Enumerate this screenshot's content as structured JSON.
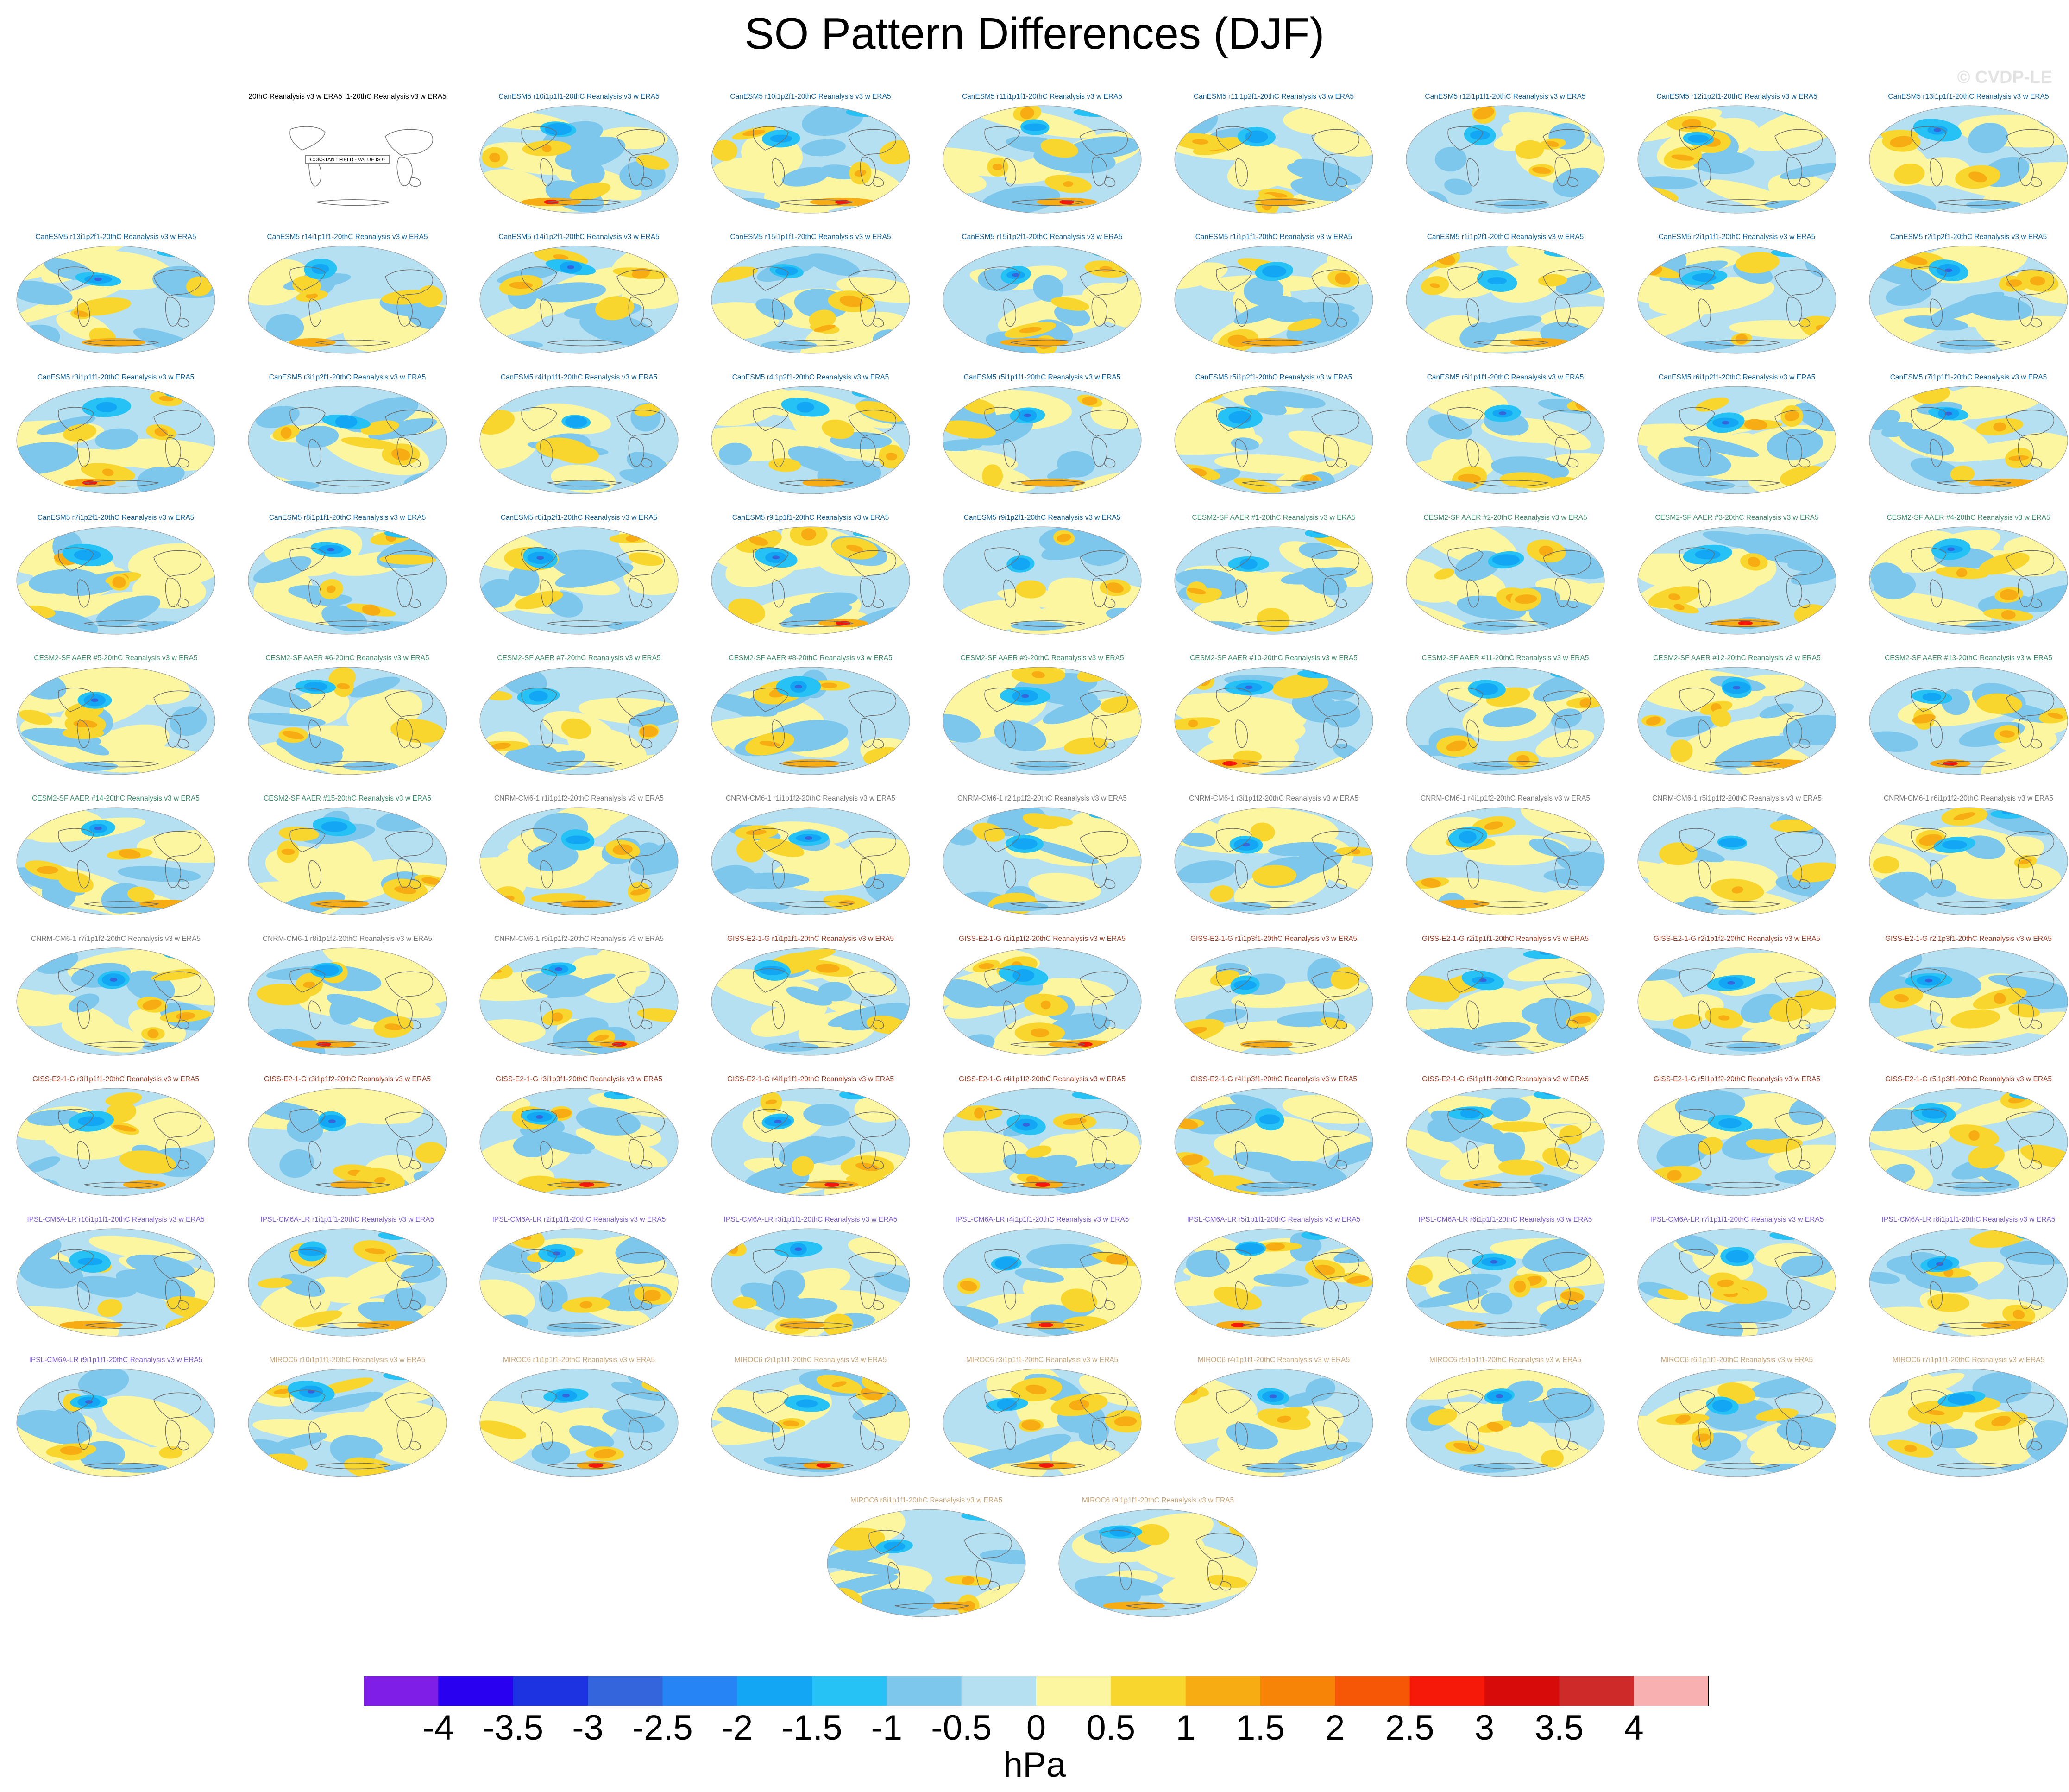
{
  "title": "SO Pattern Differences (DJF)",
  "watermark": "© CVDP-LE",
  "units": "hPa",
  "colorbar": {
    "labels": [
      "-4",
      "-3.5",
      "-3",
      "-2.5",
      "-2",
      "-1.5",
      "-1",
      "-0.5",
      "0",
      "0.5",
      "1",
      "1.5",
      "2",
      "2.5",
      "3",
      "3.5",
      "4"
    ],
    "colors": [
      "#7f1ee6",
      "#2a00f0",
      "#1d32e0",
      "#3465dc",
      "#2684f5",
      "#12a6f5",
      "#26c2f5",
      "#7ec7ec",
      "#b5e0f2",
      "#fdf6a1",
      "#f9d62e",
      "#f8ac13",
      "#f78407",
      "#f65706",
      "#f61809",
      "#d80b0b",
      "#cf2a2a",
      "#f9b0b0"
    ]
  },
  "groups": {
    "obs": "#000000",
    "canesm": "#0e5f9c",
    "cesm": "#3b8c6a",
    "cnrm": "#7a7a7a",
    "giss": "#9e3b22",
    "ipsl": "#7b5bd2",
    "miroc": "#c8a578"
  },
  "constant_field_text": "CONSTANT FIELD - VALUE IS 0",
  "panels": [
    {
      "label": "20thC Reanalysis v3 w ERA5_1-20thC Reanalysis v3 w ERA5",
      "group": "obs",
      "constant": true
    },
    {
      "label": "CanESM5 r10i1p1f1-20thC Reanalysis v3 w ERA5",
      "group": "canesm"
    },
    {
      "label": "CanESM5 r10i1p2f1-20thC Reanalysis v3 w ERA5",
      "group": "canesm"
    },
    {
      "label": "CanESM5 r11i1p1f1-20thC Reanalysis v3 w ERA5",
      "group": "canesm"
    },
    {
      "label": "CanESM5 r11i1p2f1-20thC Reanalysis v3 w ERA5",
      "group": "canesm"
    },
    {
      "label": "CanESM5 r12i1p1f1-20thC Reanalysis v3 w ERA5",
      "group": "canesm"
    },
    {
      "label": "CanESM5 r12i1p2f1-20thC Reanalysis v3 w ERA5",
      "group": "canesm"
    },
    {
      "label": "CanESM5 r13i1p1f1-20thC Reanalysis v3 w ERA5",
      "group": "canesm"
    },
    {
      "label": "CanESM5 r13i1p2f1-20thC Reanalysis v3 w ERA5",
      "group": "canesm"
    },
    {
      "label": "CanESM5 r14i1p1f1-20thC Reanalysis v3 w ERA5",
      "group": "canesm"
    },
    {
      "label": "CanESM5 r14i1p2f1-20thC Reanalysis v3 w ERA5",
      "group": "canesm"
    },
    {
      "label": "CanESM5 r15i1p1f1-20thC Reanalysis v3 w ERA5",
      "group": "canesm"
    },
    {
      "label": "CanESM5 r15i1p2f1-20thC Reanalysis v3 w ERA5",
      "group": "canesm"
    },
    {
      "label": "CanESM5 r1i1p1f1-20thC Reanalysis v3 w ERA5",
      "group": "canesm"
    },
    {
      "label": "CanESM5 r1i1p2f1-20thC Reanalysis v3 w ERA5",
      "group": "canesm"
    },
    {
      "label": "CanESM5 r2i1p1f1-20thC Reanalysis v3 w ERA5",
      "group": "canesm"
    },
    {
      "label": "CanESM5 r2i1p2f1-20thC Reanalysis v3 w ERA5",
      "group": "canesm"
    },
    {
      "label": "CanESM5 r3i1p1f1-20thC Reanalysis v3 w ERA5",
      "group": "canesm"
    },
    {
      "label": "CanESM5 r3i1p2f1-20thC Reanalysis v3 w ERA5",
      "group": "canesm"
    },
    {
      "label": "CanESM5 r4i1p1f1-20thC Reanalysis v3 w ERA5",
      "group": "canesm"
    },
    {
      "label": "CanESM5 r4i1p2f1-20thC Reanalysis v3 w ERA5",
      "group": "canesm"
    },
    {
      "label": "CanESM5 r5i1p1f1-20thC Reanalysis v3 w ERA5",
      "group": "canesm"
    },
    {
      "label": "CanESM5 r5i1p2f1-20thC Reanalysis v3 w ERA5",
      "group": "canesm"
    },
    {
      "label": "CanESM5 r6i1p1f1-20thC Reanalysis v3 w ERA5",
      "group": "canesm"
    },
    {
      "label": "CanESM5 r6i1p2f1-20thC Reanalysis v3 w ERA5",
      "group": "canesm"
    },
    {
      "label": "CanESM5 r7i1p1f1-20thC Reanalysis v3 w ERA5",
      "group": "canesm"
    },
    {
      "label": "CanESM5 r7i1p2f1-20thC Reanalysis v3 w ERA5",
      "group": "canesm"
    },
    {
      "label": "CanESM5 r8i1p1f1-20thC Reanalysis v3 w ERA5",
      "group": "canesm"
    },
    {
      "label": "CanESM5 r8i1p2f1-20thC Reanalysis v3 w ERA5",
      "group": "canesm"
    },
    {
      "label": "CanESM5 r9i1p1f1-20thC Reanalysis v3 w ERA5",
      "group": "canesm"
    },
    {
      "label": "CanESM5 r9i1p2f1-20thC Reanalysis v3 w ERA5",
      "group": "canesm"
    },
    {
      "label": "CESM2-SF AAER #1-20thC Reanalysis v3 w ERA5",
      "group": "cesm"
    },
    {
      "label": "CESM2-SF AAER #2-20thC Reanalysis v3 w ERA5",
      "group": "cesm"
    },
    {
      "label": "CESM2-SF AAER #3-20thC Reanalysis v3 w ERA5",
      "group": "cesm"
    },
    {
      "label": "CESM2-SF AAER #4-20thC Reanalysis v3 w ERA5",
      "group": "cesm"
    },
    {
      "label": "CESM2-SF AAER #5-20thC Reanalysis v3 w ERA5",
      "group": "cesm"
    },
    {
      "label": "CESM2-SF AAER #6-20thC Reanalysis v3 w ERA5",
      "group": "cesm"
    },
    {
      "label": "CESM2-SF AAER #7-20thC Reanalysis v3 w ERA5",
      "group": "cesm"
    },
    {
      "label": "CESM2-SF AAER #8-20thC Reanalysis v3 w ERA5",
      "group": "cesm"
    },
    {
      "label": "CESM2-SF AAER #9-20thC Reanalysis v3 w ERA5",
      "group": "cesm"
    },
    {
      "label": "CESM2-SF AAER #10-20thC Reanalysis v3 w ERA5",
      "group": "cesm"
    },
    {
      "label": "CESM2-SF AAER #11-20thC Reanalysis v3 w ERA5",
      "group": "cesm"
    },
    {
      "label": "CESM2-SF AAER #12-20thC Reanalysis v3 w ERA5",
      "group": "cesm"
    },
    {
      "label": "CESM2-SF AAER #13-20thC Reanalysis v3 w ERA5",
      "group": "cesm"
    },
    {
      "label": "CESM2-SF AAER #14-20thC Reanalysis v3 w ERA5",
      "group": "cesm"
    },
    {
      "label": "CESM2-SF AAER #15-20thC Reanalysis v3 w ERA5",
      "group": "cesm"
    },
    {
      "label": "CNRM-CM6-1 r1i1p1f2-20thC Reanalysis v3 w ERA5",
      "group": "cnrm"
    },
    {
      "label": "CNRM-CM6-1 r1i1p1f2-20thC Reanalysis v3 w ERA5",
      "group": "cnrm"
    },
    {
      "label": "CNRM-CM6-1 r2i1p1f2-20thC Reanalysis v3 w ERA5",
      "group": "cnrm"
    },
    {
      "label": "CNRM-CM6-1 r3i1p1f2-20thC Reanalysis v3 w ERA5",
      "group": "cnrm"
    },
    {
      "label": "CNRM-CM6-1 r4i1p1f2-20thC Reanalysis v3 w ERA5",
      "group": "cnrm"
    },
    {
      "label": "CNRM-CM6-1 r5i1p1f2-20thC Reanalysis v3 w ERA5",
      "group": "cnrm"
    },
    {
      "label": "CNRM-CM6-1 r6i1p1f2-20thC Reanalysis v3 w ERA5",
      "group": "cnrm"
    },
    {
      "label": "CNRM-CM6-1 r7i1p1f2-20thC Reanalysis v3 w ERA5",
      "group": "cnrm"
    },
    {
      "label": "CNRM-CM6-1 r8i1p1f2-20thC Reanalysis v3 w ERA5",
      "group": "cnrm"
    },
    {
      "label": "CNRM-CM6-1 r9i1p1f2-20thC Reanalysis v3 w ERA5",
      "group": "cnrm"
    },
    {
      "label": "GISS-E2-1-G r1i1p1f1-20thC Reanalysis v3 w ERA5",
      "group": "giss"
    },
    {
      "label": "GISS-E2-1-G r1i1p1f2-20thC Reanalysis v3 w ERA5",
      "group": "giss"
    },
    {
      "label": "GISS-E2-1-G r1i1p3f1-20thC Reanalysis v3 w ERA5",
      "group": "giss"
    },
    {
      "label": "GISS-E2-1-G r2i1p1f1-20thC Reanalysis v3 w ERA5",
      "group": "giss"
    },
    {
      "label": "GISS-E2-1-G r2i1p1f2-20thC Reanalysis v3 w ERA5",
      "group": "giss"
    },
    {
      "label": "GISS-E2-1-G r2i1p3f1-20thC Reanalysis v3 w ERA5",
      "group": "giss"
    },
    {
      "label": "GISS-E2-1-G r3i1p1f1-20thC Reanalysis v3 w ERA5",
      "group": "giss"
    },
    {
      "label": "GISS-E2-1-G r3i1p1f2-20thC Reanalysis v3 w ERA5",
      "group": "giss"
    },
    {
      "label": "GISS-E2-1-G r3i1p3f1-20thC Reanalysis v3 w ERA5",
      "group": "giss"
    },
    {
      "label": "GISS-E2-1-G r4i1p1f1-20thC Reanalysis v3 w ERA5",
      "group": "giss"
    },
    {
      "label": "GISS-E2-1-G r4i1p1f2-20thC Reanalysis v3 w ERA5",
      "group": "giss"
    },
    {
      "label": "GISS-E2-1-G r4i1p3f1-20thC Reanalysis v3 w ERA5",
      "group": "giss"
    },
    {
      "label": "GISS-E2-1-G r5i1p1f1-20thC Reanalysis v3 w ERA5",
      "group": "giss"
    },
    {
      "label": "GISS-E2-1-G r5i1p1f2-20thC Reanalysis v3 w ERA5",
      "group": "giss"
    },
    {
      "label": "GISS-E2-1-G r5i1p3f1-20thC Reanalysis v3 w ERA5",
      "group": "giss"
    },
    {
      "label": "IPSL-CM6A-LR r10i1p1f1-20thC Reanalysis v3 w ERA5",
      "group": "ipsl"
    },
    {
      "label": "IPSL-CM6A-LR r1i1p1f1-20thC Reanalysis v3 w ERA5",
      "group": "ipsl"
    },
    {
      "label": "IPSL-CM6A-LR r2i1p1f1-20thC Reanalysis v3 w ERA5",
      "group": "ipsl"
    },
    {
      "label": "IPSL-CM6A-LR r3i1p1f1-20thC Reanalysis v3 w ERA5",
      "group": "ipsl"
    },
    {
      "label": "IPSL-CM6A-LR r4i1p1f1-20thC Reanalysis v3 w ERA5",
      "group": "ipsl"
    },
    {
      "label": "IPSL-CM6A-LR r5i1p1f1-20thC Reanalysis v3 w ERA5",
      "group": "ipsl"
    },
    {
      "label": "IPSL-CM6A-LR r6i1p1f1-20thC Reanalysis v3 w ERA5",
      "group": "ipsl"
    },
    {
      "label": "IPSL-CM6A-LR r7i1p1f1-20thC Reanalysis v3 w ERA5",
      "group": "ipsl"
    },
    {
      "label": "IPSL-CM6A-LR r8i1p1f1-20thC Reanalysis v3 w ERA5",
      "group": "ipsl"
    },
    {
      "label": "IPSL-CM6A-LR r9i1p1f1-20thC Reanalysis v3 w ERA5",
      "group": "ipsl"
    },
    {
      "label": "MIROC6 r10i1p1f1-20thC Reanalysis v3 w ERA5",
      "group": "miroc"
    },
    {
      "label": "MIROC6 r1i1p1f1-20thC Reanalysis v3 w ERA5",
      "group": "miroc"
    },
    {
      "label": "MIROC6 r2i1p1f1-20thC Reanalysis v3 w ERA5",
      "group": "miroc"
    },
    {
      "label": "MIROC6 r3i1p1f1-20thC Reanalysis v3 w ERA5",
      "group": "miroc"
    },
    {
      "label": "MIROC6 r4i1p1f1-20thC Reanalysis v3 w ERA5",
      "group": "miroc"
    },
    {
      "label": "MIROC6 r5i1p1f1-20thC Reanalysis v3 w ERA5",
      "group": "miroc"
    },
    {
      "label": "MIROC6 r6i1p1f1-20thC Reanalysis v3 w ERA5",
      "group": "miroc"
    },
    {
      "label": "MIROC6 r7i1p1f1-20thC Reanalysis v3 w ERA5",
      "group": "miroc"
    },
    {
      "label": "MIROC6 r8i1p1f1-20thC Reanalysis v3 w ERA5",
      "group": "miroc"
    },
    {
      "label": "MIROC6 r9i1p1f1-20thC Reanalysis v3 w ERA5",
      "group": "miroc"
    }
  ]
}
